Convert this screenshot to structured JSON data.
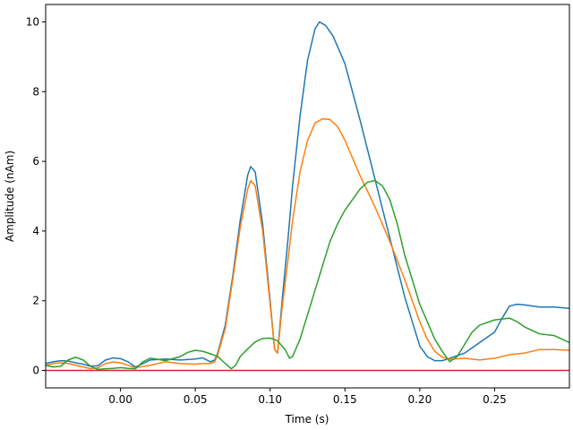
{
  "chart_data": {
    "type": "line",
    "title": "",
    "xlabel": "Time (s)",
    "ylabel": "Amplitude (nAm)",
    "xlim": [
      -0.05,
      0.3
    ],
    "ylim": [
      -0.5,
      10.5
    ],
    "xticks": [
      0.0,
      0.05,
      0.1,
      0.15,
      0.2,
      0.25
    ],
    "xtick_labels": [
      "0.00",
      "0.05",
      "0.10",
      "0.15",
      "0.20",
      "0.25"
    ],
    "yticks": [
      0,
      2,
      4,
      6,
      8,
      10
    ],
    "ytick_labels": [
      "0",
      "2",
      "4",
      "6",
      "8",
      "10"
    ],
    "grid": false,
    "legend": "none",
    "series": [
      {
        "color": "#1f77b4",
        "points": [
          [
            -0.05,
            0.2
          ],
          [
            -0.045,
            0.25
          ],
          [
            -0.04,
            0.28
          ],
          [
            -0.035,
            0.27
          ],
          [
            -0.03,
            0.22
          ],
          [
            -0.025,
            0.18
          ],
          [
            -0.02,
            0.12
          ],
          [
            -0.015,
            0.14
          ],
          [
            -0.01,
            0.3
          ],
          [
            -0.005,
            0.36
          ],
          [
            0.0,
            0.34
          ],
          [
            0.005,
            0.25
          ],
          [
            0.01,
            0.1
          ],
          [
            0.015,
            0.2
          ],
          [
            0.02,
            0.3
          ],
          [
            0.03,
            0.33
          ],
          [
            0.04,
            0.3
          ],
          [
            0.05,
            0.33
          ],
          [
            0.055,
            0.36
          ],
          [
            0.06,
            0.25
          ],
          [
            0.063,
            0.3
          ],
          [
            0.065,
            0.5
          ],
          [
            0.07,
            1.3
          ],
          [
            0.075,
            2.7
          ],
          [
            0.08,
            4.3
          ],
          [
            0.085,
            5.6
          ],
          [
            0.087,
            5.85
          ],
          [
            0.09,
            5.7
          ],
          [
            0.095,
            4.2
          ],
          [
            0.1,
            2.0
          ],
          [
            0.103,
            0.6
          ],
          [
            0.105,
            0.5
          ],
          [
            0.108,
            2.0
          ],
          [
            0.112,
            3.8
          ],
          [
            0.115,
            5.3
          ],
          [
            0.12,
            7.3
          ],
          [
            0.125,
            8.9
          ],
          [
            0.13,
            9.8
          ],
          [
            0.133,
            10.0
          ],
          [
            0.137,
            9.9
          ],
          [
            0.142,
            9.6
          ],
          [
            0.15,
            8.8
          ],
          [
            0.16,
            7.2
          ],
          [
            0.17,
            5.5
          ],
          [
            0.18,
            3.8
          ],
          [
            0.19,
            2.1
          ],
          [
            0.2,
            0.7
          ],
          [
            0.205,
            0.4
          ],
          [
            0.21,
            0.28
          ],
          [
            0.215,
            0.28
          ],
          [
            0.22,
            0.35
          ],
          [
            0.23,
            0.5
          ],
          [
            0.24,
            0.8
          ],
          [
            0.25,
            1.1
          ],
          [
            0.255,
            1.5
          ],
          [
            0.26,
            1.85
          ],
          [
            0.265,
            1.9
          ],
          [
            0.27,
            1.88
          ],
          [
            0.28,
            1.82
          ],
          [
            0.29,
            1.82
          ],
          [
            0.3,
            1.78
          ]
        ]
      },
      {
        "color": "#ff7f0e",
        "points": [
          [
            -0.05,
            0.15
          ],
          [
            -0.045,
            0.2
          ],
          [
            -0.04,
            0.22
          ],
          [
            -0.035,
            0.2
          ],
          [
            -0.03,
            0.15
          ],
          [
            -0.025,
            0.1
          ],
          [
            -0.02,
            0.05
          ],
          [
            -0.015,
            0.08
          ],
          [
            -0.01,
            0.2
          ],
          [
            -0.005,
            0.24
          ],
          [
            0.0,
            0.22
          ],
          [
            0.005,
            0.15
          ],
          [
            0.01,
            0.08
          ],
          [
            0.02,
            0.15
          ],
          [
            0.03,
            0.25
          ],
          [
            0.04,
            0.2
          ],
          [
            0.05,
            0.18
          ],
          [
            0.055,
            0.2
          ],
          [
            0.06,
            0.2
          ],
          [
            0.063,
            0.25
          ],
          [
            0.065,
            0.45
          ],
          [
            0.07,
            1.2
          ],
          [
            0.075,
            2.6
          ],
          [
            0.08,
            4.1
          ],
          [
            0.085,
            5.2
          ],
          [
            0.087,
            5.45
          ],
          [
            0.09,
            5.3
          ],
          [
            0.095,
            4.0
          ],
          [
            0.1,
            1.9
          ],
          [
            0.103,
            0.6
          ],
          [
            0.105,
            0.5
          ],
          [
            0.108,
            1.8
          ],
          [
            0.112,
            3.2
          ],
          [
            0.115,
            4.3
          ],
          [
            0.12,
            5.7
          ],
          [
            0.125,
            6.6
          ],
          [
            0.13,
            7.1
          ],
          [
            0.135,
            7.22
          ],
          [
            0.14,
            7.2
          ],
          [
            0.145,
            7.0
          ],
          [
            0.15,
            6.6
          ],
          [
            0.16,
            5.6
          ],
          [
            0.17,
            4.7
          ],
          [
            0.18,
            3.7
          ],
          [
            0.19,
            2.6
          ],
          [
            0.2,
            1.4
          ],
          [
            0.205,
            0.9
          ],
          [
            0.21,
            0.55
          ],
          [
            0.215,
            0.38
          ],
          [
            0.22,
            0.32
          ],
          [
            0.23,
            0.35
          ],
          [
            0.24,
            0.3
          ],
          [
            0.25,
            0.35
          ],
          [
            0.26,
            0.45
          ],
          [
            0.27,
            0.5
          ],
          [
            0.28,
            0.6
          ],
          [
            0.29,
            0.6
          ],
          [
            0.3,
            0.58
          ]
        ]
      },
      {
        "color": "#2ca02c",
        "points": [
          [
            -0.05,
            0.15
          ],
          [
            -0.045,
            0.1
          ],
          [
            -0.04,
            0.12
          ],
          [
            -0.035,
            0.3
          ],
          [
            -0.03,
            0.38
          ],
          [
            -0.025,
            0.3
          ],
          [
            -0.02,
            0.12
          ],
          [
            -0.015,
            0.03
          ],
          [
            -0.01,
            0.05
          ],
          [
            -0.005,
            0.06
          ],
          [
            0.0,
            0.08
          ],
          [
            0.005,
            0.06
          ],
          [
            0.01,
            0.05
          ],
          [
            0.015,
            0.25
          ],
          [
            0.02,
            0.35
          ],
          [
            0.025,
            0.32
          ],
          [
            0.03,
            0.28
          ],
          [
            0.04,
            0.4
          ],
          [
            0.045,
            0.52
          ],
          [
            0.05,
            0.58
          ],
          [
            0.055,
            0.55
          ],
          [
            0.06,
            0.48
          ],
          [
            0.065,
            0.4
          ],
          [
            0.07,
            0.2
          ],
          [
            0.074,
            0.05
          ],
          [
            0.077,
            0.15
          ],
          [
            0.08,
            0.4
          ],
          [
            0.085,
            0.62
          ],
          [
            0.09,
            0.82
          ],
          [
            0.095,
            0.92
          ],
          [
            0.1,
            0.93
          ],
          [
            0.105,
            0.85
          ],
          [
            0.11,
            0.6
          ],
          [
            0.113,
            0.35
          ],
          [
            0.115,
            0.4
          ],
          [
            0.12,
            0.9
          ],
          [
            0.125,
            1.6
          ],
          [
            0.13,
            2.3
          ],
          [
            0.135,
            3.0
          ],
          [
            0.14,
            3.7
          ],
          [
            0.145,
            4.2
          ],
          [
            0.15,
            4.6
          ],
          [
            0.155,
            4.9
          ],
          [
            0.16,
            5.2
          ],
          [
            0.165,
            5.4
          ],
          [
            0.17,
            5.45
          ],
          [
            0.175,
            5.3
          ],
          [
            0.18,
            4.9
          ],
          [
            0.185,
            4.2
          ],
          [
            0.19,
            3.3
          ],
          [
            0.2,
            1.9
          ],
          [
            0.21,
            0.9
          ],
          [
            0.215,
            0.55
          ],
          [
            0.22,
            0.25
          ],
          [
            0.225,
            0.4
          ],
          [
            0.23,
            0.75
          ],
          [
            0.235,
            1.1
          ],
          [
            0.24,
            1.3
          ],
          [
            0.25,
            1.45
          ],
          [
            0.26,
            1.5
          ],
          [
            0.265,
            1.4
          ],
          [
            0.27,
            1.25
          ],
          [
            0.28,
            1.05
          ],
          [
            0.29,
            1.0
          ],
          [
            0.3,
            0.8
          ]
        ]
      },
      {
        "color": "#d62728",
        "points": [
          [
            -0.05,
            0.0
          ],
          [
            0.3,
            0.0
          ]
        ]
      }
    ]
  }
}
